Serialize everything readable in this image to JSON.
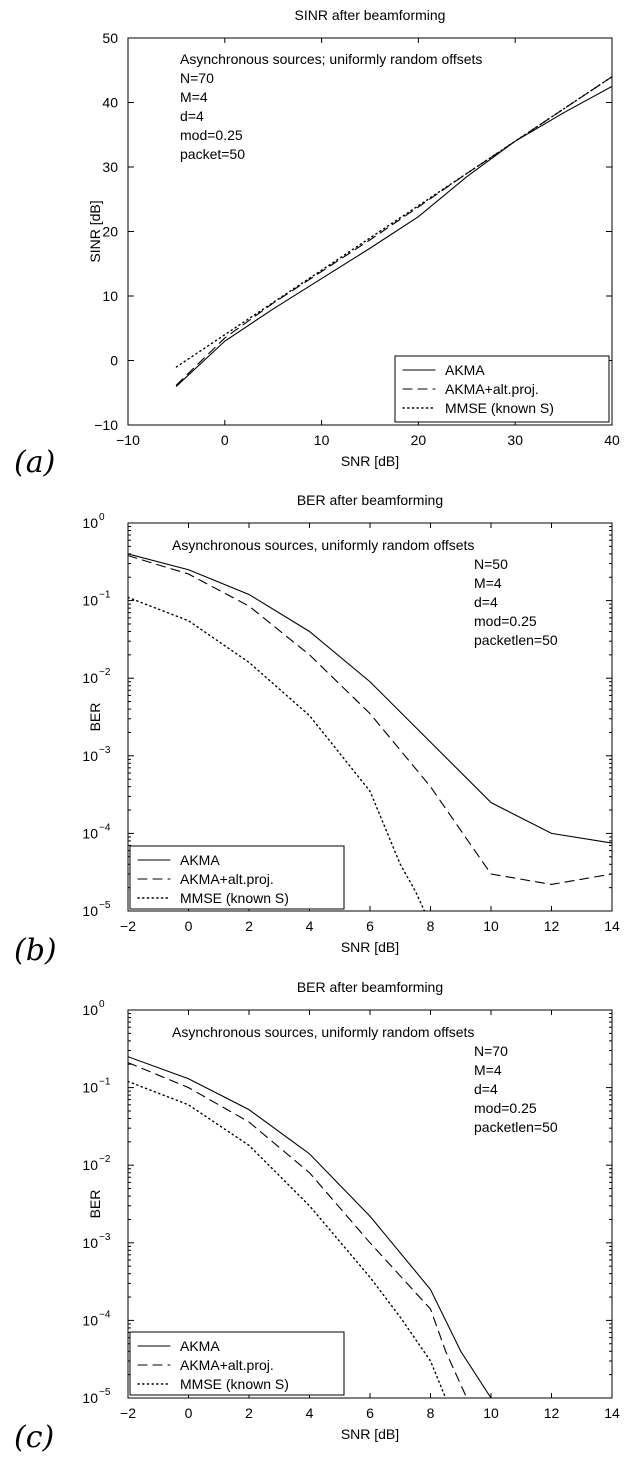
{
  "chart_data": [
    {
      "id": "a",
      "type": "line",
      "panel_label": "(a)",
      "title": "SINR after beamforming",
      "xlabel": "SNR [dB]",
      "ylabel": "SINR [dB]",
      "xlim": [
        -10,
        40
      ],
      "ylim": [
        -10,
        50
      ],
      "xticks": [
        -10,
        0,
        10,
        20,
        30,
        40
      ],
      "yticks": [
        -10,
        0,
        10,
        20,
        30,
        40,
        50
      ],
      "yscale": "linear",
      "grid": false,
      "legend_position": "bottom-right",
      "annotation": [
        "Asynchronous sources; uniformly random offsets",
        "N=70",
        "M=4",
        "d=4",
        "mod=0.25",
        "packet=50"
      ],
      "annotation_align": "left",
      "series": [
        {
          "name": "AKMA",
          "style": "solid",
          "x": [
            -5,
            0,
            5,
            10,
            15,
            20,
            25,
            30,
            35,
            40
          ],
          "y": [
            -4,
            3,
            8,
            12.7,
            17.4,
            22.3,
            28.5,
            34,
            38.4,
            42.5
          ]
        },
        {
          "name": "AKMA+alt.proj.",
          "style": "dashed",
          "x": [
            -5,
            0,
            5,
            10,
            15,
            20,
            25,
            30,
            35,
            40
          ],
          "y": [
            -3.8,
            3.5,
            8.9,
            13.8,
            18.7,
            23.8,
            29,
            34,
            39,
            44
          ]
        },
        {
          "name": "MMSE (known S)",
          "style": "dotted",
          "x": [
            -5,
            0,
            5,
            10,
            15,
            20,
            25,
            30,
            35,
            40
          ],
          "y": [
            -1,
            4,
            9,
            14,
            19,
            24,
            29,
            34,
            39,
            44
          ]
        }
      ]
    },
    {
      "id": "b",
      "type": "line",
      "panel_label": "(b)",
      "title": "BER after beamforming",
      "xlabel": "SNR [dB]",
      "ylabel": "BER",
      "xlim": [
        -2,
        14
      ],
      "ylim": [
        1e-05,
        1
      ],
      "xticks": [
        -2,
        0,
        2,
        4,
        6,
        8,
        10,
        12,
        14
      ],
      "ytick_exponents": [
        -5,
        -4,
        -3,
        -2,
        -1,
        0
      ],
      "yscale": "log",
      "grid": false,
      "legend_position": "bottom-left",
      "annotation": [
        "Asynchronous sources, uniformly random offsets",
        "N=50",
        "M=4",
        "d=4",
        "mod=0.25",
        "packetlen=50"
      ],
      "annotation_align": "offset",
      "series": [
        {
          "name": "AKMA",
          "style": "solid",
          "x": [
            -2,
            0,
            2,
            4,
            6,
            8,
            10,
            12,
            14
          ],
          "y": [
            0.4,
            0.25,
            0.12,
            0.04,
            0.009,
            0.0015,
            0.00025,
            0.0001,
            7.5e-05
          ]
        },
        {
          "name": "AKMA+alt.proj.",
          "style": "dashed",
          "x": [
            -2,
            0,
            2,
            4,
            6,
            8,
            10,
            12,
            14
          ],
          "y": [
            0.38,
            0.22,
            0.085,
            0.02,
            0.0035,
            0.0004,
            3e-05,
            2.2e-05,
            3e-05
          ]
        },
        {
          "name": "MMSE (known S)",
          "style": "dotted",
          "x": [
            -2,
            0,
            2,
            4,
            6,
            7,
            7.5,
            7.8
          ],
          "y": [
            0.11,
            0.055,
            0.016,
            0.0033,
            0.00035,
            4e-05,
            1.8e-05,
            1e-05
          ]
        }
      ]
    },
    {
      "id": "c",
      "type": "line",
      "panel_label": "(c)",
      "title": "BER after beamforming",
      "xlabel": "SNR [dB]",
      "ylabel": "BER",
      "xlim": [
        -2,
        14
      ],
      "ylim": [
        1e-05,
        1
      ],
      "xticks": [
        -2,
        0,
        2,
        4,
        6,
        8,
        10,
        12,
        14
      ],
      "ytick_exponents": [
        -5,
        -4,
        -3,
        -2,
        -1,
        0
      ],
      "yscale": "log",
      "grid": false,
      "legend_position": "bottom-left",
      "annotation": [
        "Asynchronous sources, uniformly random offsets",
        "N=70",
        "M=4",
        "d=4",
        "mod=0.25",
        "packetlen=50"
      ],
      "annotation_align": "offset",
      "series": [
        {
          "name": "AKMA",
          "style": "solid",
          "x": [
            -2,
            0,
            2,
            4,
            6,
            8,
            9,
            10
          ],
          "y": [
            0.25,
            0.13,
            0.052,
            0.014,
            0.0022,
            0.00025,
            4e-05,
            1e-05
          ]
        },
        {
          "name": "AKMA+alt.proj.",
          "style": "dashed",
          "x": [
            -2,
            0,
            2,
            4,
            6,
            8,
            8.5,
            9.2
          ],
          "y": [
            0.21,
            0.1,
            0.036,
            0.008,
            0.001,
            0.00014,
            4e-05,
            1e-05
          ]
        },
        {
          "name": "MMSE (known S)",
          "style": "dotted",
          "x": [
            -2,
            0,
            2,
            4,
            6,
            7,
            8,
            8.5
          ],
          "y": [
            0.12,
            0.06,
            0.018,
            0.003,
            0.00036,
            0.00011,
            3e-05,
            1e-05
          ]
        }
      ]
    }
  ]
}
